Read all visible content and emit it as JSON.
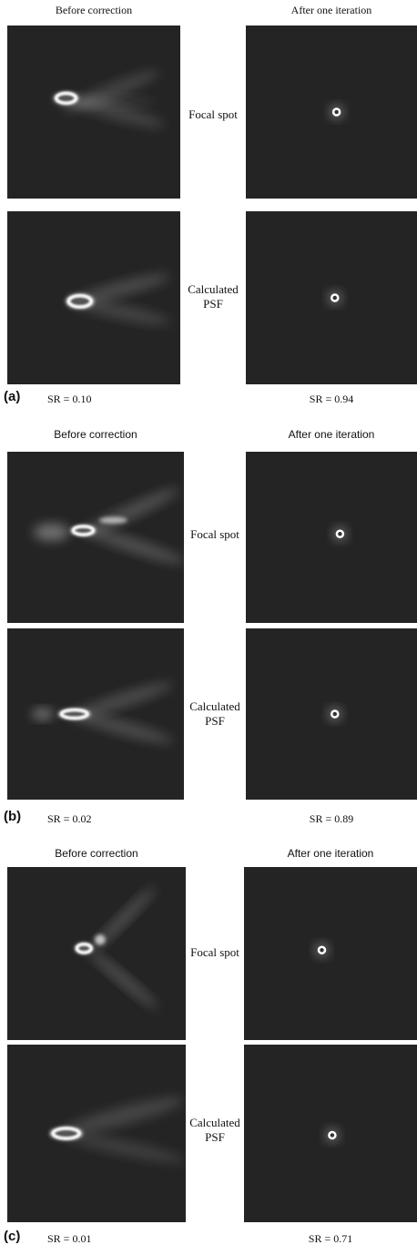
{
  "panels": [
    {
      "label": "(a)",
      "before_title": "Before correction",
      "after_title": "After one iteration",
      "row1_label": "Focal spot",
      "row2_label": [
        "Calculated",
        "PSF"
      ],
      "sr_before": "SR = 0.10",
      "sr_after": "SR = 0.94"
    },
    {
      "label": "(b)",
      "before_title": "Before correction",
      "after_title": "After one iteration",
      "row1_label": "Focal spot",
      "row2_label": [
        "Calculated",
        "PSF"
      ],
      "sr_before": "SR = 0.02",
      "sr_after": "SR = 0.89"
    },
    {
      "label": "(c)",
      "before_title": "Before correction",
      "after_title": "After one iteration",
      "row1_label": "Focal spot",
      "row2_label": [
        "Calculated",
        "PSF"
      ],
      "sr_before": "SR = 0.01",
      "sr_after": "SR = 0.71"
    }
  ]
}
